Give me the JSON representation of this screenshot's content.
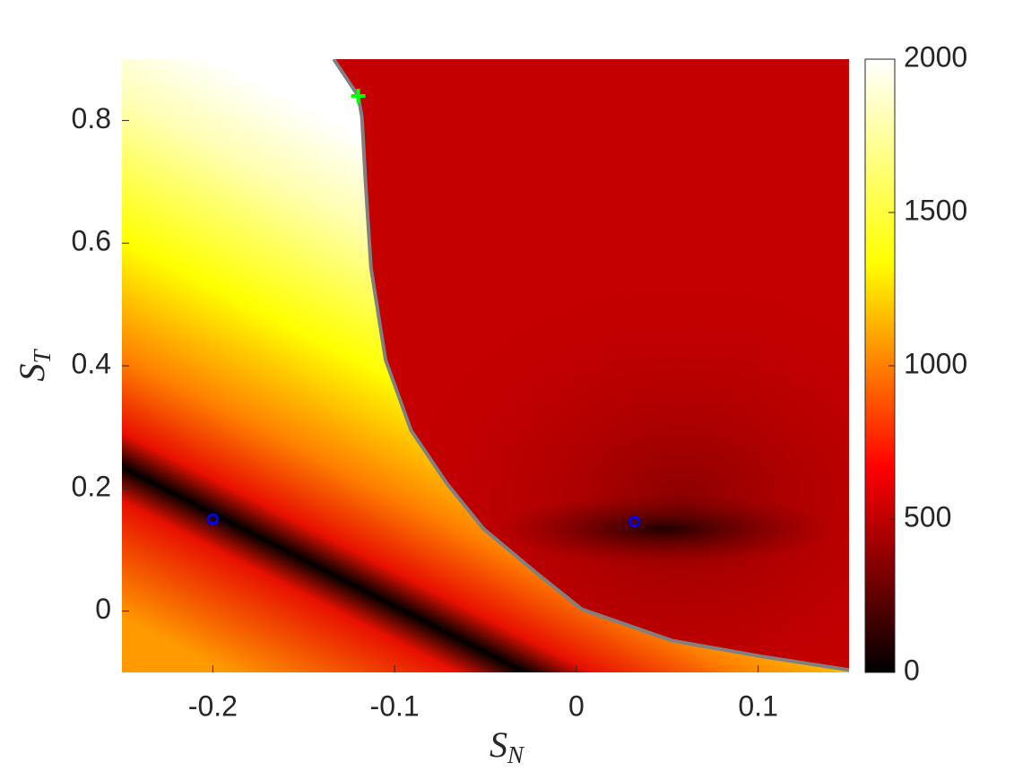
{
  "chart_data": {
    "type": "heatmap",
    "xlim": [
      -0.25,
      0.15
    ],
    "xticks": [
      -0.2,
      -0.1,
      0,
      0.1
    ],
    "ylim": [
      -0.1,
      0.9
    ],
    "yticks": [
      0,
      0.2,
      0.4,
      0.6,
      0.8
    ],
    "xlabel": {
      "main": "S",
      "sub": "N"
    },
    "ylabel": {
      "main": "S",
      "sub": "T"
    },
    "colormap": [
      "#000000",
      "#ff0000",
      "#ffff00",
      "#ffffff"
    ],
    "colorbar": {
      "lim": [
        0,
        2000
      ],
      "ticks": [
        0,
        500,
        1000,
        1500,
        2000
      ]
    },
    "boundary": {
      "color": "#808080",
      "x": [
        -0.1335,
        -0.12,
        -0.118,
        -0.116,
        -0.113,
        -0.105,
        -0.091,
        -0.071,
        -0.051,
        -0.0215,
        0.003,
        0.0525,
        0.102,
        0.15
      ],
      "y": [
        0.9,
        0.84,
        0.806,
        0.7,
        0.56,
        0.41,
        0.295,
        0.207,
        0.134,
        0.061,
        0.003,
        -0.048,
        -0.074,
        -0.096
      ]
    },
    "points": [
      {
        "marker": "circle",
        "color": "#0000ff",
        "x": -0.2,
        "y": 0.15
      },
      {
        "marker": "circle",
        "color": "#0000ff",
        "x": 0.032,
        "y": 0.146
      },
      {
        "marker": "plus",
        "color": "#00ff00",
        "x": -0.12,
        "y": 0.84
      }
    ]
  }
}
